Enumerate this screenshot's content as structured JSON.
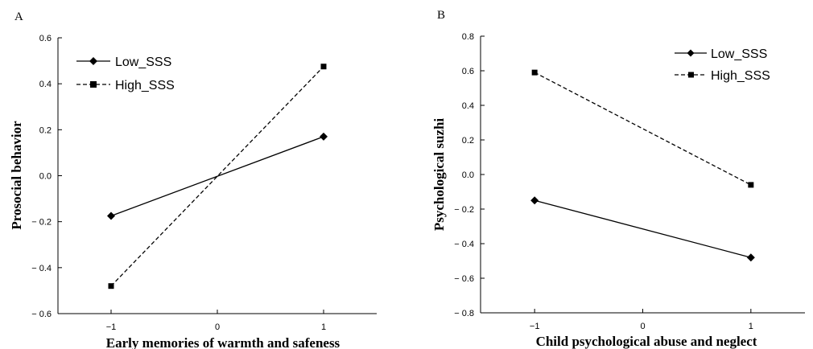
{
  "chart_data": [
    {
      "panel_label": "A",
      "type": "line",
      "xlabel": "Early memories of warmth and safeness",
      "ylabel": "Prosocial behavior",
      "xlim": [
        -1.5,
        1.5
      ],
      "ylim": [
        -0.6,
        0.6
      ],
      "x_ticks": [
        -1,
        0,
        1
      ],
      "x_tick_labels": [
        "−1",
        "0",
        "1"
      ],
      "y_ticks": [
        -0.6,
        -0.4,
        -0.2,
        0.0,
        0.2,
        0.4,
        0.6
      ],
      "y_tick_labels": [
        "− 0.6",
        "− 0.4",
        "− 0.2",
        "0.0",
        "0.2",
        "0.4",
        "0.6"
      ],
      "legend_position": "top-left",
      "grid": false,
      "series": [
        {
          "name": "Low_SSS",
          "x": [
            -1,
            1
          ],
          "y": [
            -0.175,
            0.17
          ],
          "line_style": "solid",
          "marker": "diamond",
          "color": "#000000"
        },
        {
          "name": "High_SSS",
          "x": [
            -1,
            1
          ],
          "y": [
            -0.48,
            0.475
          ],
          "line_style": "dashed",
          "marker": "square",
          "color": "#000000"
        }
      ]
    },
    {
      "panel_label": "B",
      "type": "line",
      "xlabel": "Child psychological abuse and neglect",
      "ylabel": "Psychological suzhi",
      "xlim": [
        -1.5,
        1.5
      ],
      "ylim": [
        -0.8,
        0.8
      ],
      "x_ticks": [
        -1,
        0,
        1
      ],
      "x_tick_labels": [
        "−1",
        "0",
        "1"
      ],
      "y_ticks": [
        -0.8,
        -0.6,
        -0.4,
        -0.2,
        0.0,
        0.2,
        0.4,
        0.6,
        0.8
      ],
      "y_tick_labels": [
        "− 0.8",
        "− 0.6",
        "− 0.4",
        "− 0.2",
        "0.0",
        "0.2",
        "0.4",
        "0.6",
        "0.8"
      ],
      "legend_position": "top-right",
      "grid": false,
      "series": [
        {
          "name": "Low_SSS",
          "x": [
            -1,
            1
          ],
          "y": [
            -0.15,
            -0.48
          ],
          "line_style": "solid",
          "marker": "diamond",
          "color": "#000000"
        },
        {
          "name": "High_SSS",
          "x": [
            -1,
            1
          ],
          "y": [
            0.59,
            -0.06
          ],
          "line_style": "dashed",
          "marker": "square",
          "color": "#000000"
        }
      ]
    }
  ]
}
